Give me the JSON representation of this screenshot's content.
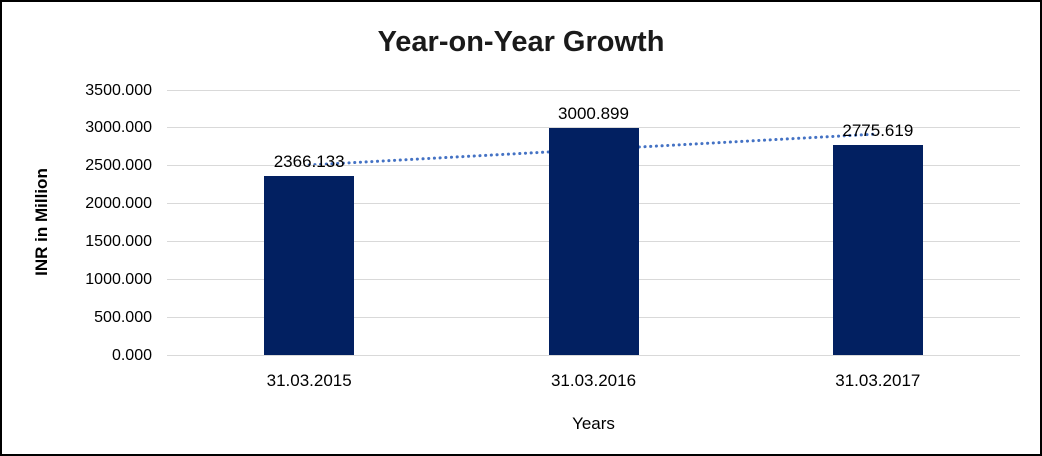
{
  "chart_data": {
    "type": "bar",
    "title": "Year-on-Year Growth",
    "xlabel": "Years",
    "ylabel": "INR in Million",
    "categories": [
      "31.03.2015",
      "31.03.2016",
      "31.03.2017"
    ],
    "values": [
      2366.133,
      3000.899,
      2775.619
    ],
    "data_labels": [
      "2366.133",
      "3000.899",
      "2775.619"
    ],
    "ylim": [
      0,
      3500
    ],
    "ytick_step": 500,
    "ytick_labels": [
      "0.000",
      "500.000",
      "1000.000",
      "1500.000",
      "2000.000",
      "2500.000",
      "3000.000",
      "3500.000"
    ],
    "grid": true,
    "legend": "none",
    "bar_color": "#022061",
    "gridline_color": "#d9d9d9",
    "trendline": {
      "type": "linear",
      "style": "dotted",
      "color": "#4472c4",
      "start_value": 2509.5,
      "end_value": 2919.0
    }
  }
}
